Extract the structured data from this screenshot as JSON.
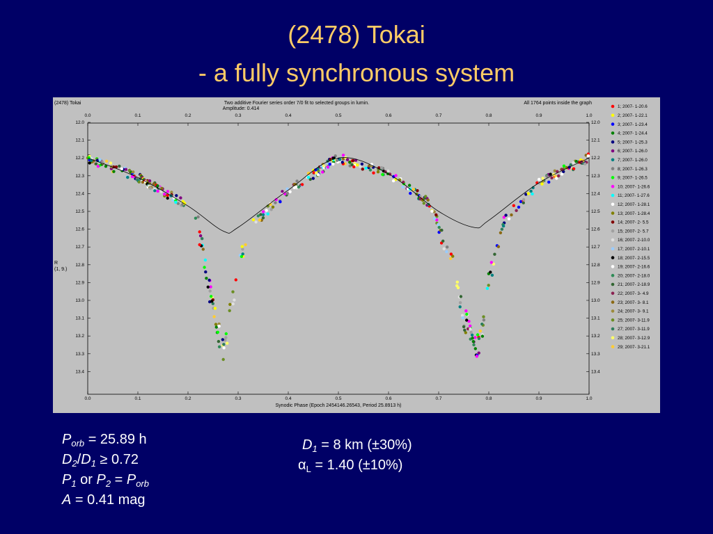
{
  "slide": {
    "title_line1": "(2478) Tokai",
    "title_line2": "- a fully synchronous system"
  },
  "plot": {
    "header_left": "(2478) Tokai",
    "header_center_1": "Two additive Fourier series order 7/0 fit to selected groups in lumin.",
    "header_center_2": "Amplitude: 0.414",
    "header_right": "All 1764 points inside the graph",
    "ylabel_1": "R",
    "ylabel_2": "(1, 9.)",
    "xlabel": "Synodic Phase (Epoch 2454146.26543, Period 25.8913 h)"
  },
  "chart_data": {
    "type": "scatter",
    "x_ticks": [
      "0.0",
      "0.1",
      "0.2",
      "0.3",
      "0.4",
      "0.5",
      "0.6",
      "0.7",
      "0.8",
      "0.9",
      "1.0"
    ],
    "y_ticks": [
      "12.0",
      "12.1",
      "12.2",
      "12.3",
      "12.4",
      "12.5",
      "12.6",
      "12.7",
      "12.8",
      "12.9",
      "13.0",
      "13.1",
      "13.2",
      "13.3",
      "13.4"
    ],
    "xlim": [
      0.0,
      1.0
    ],
    "ylim": [
      12.0,
      13.4
    ],
    "y_inverted": true,
    "legend_position": "right",
    "fit_curve": [
      [
        0.0,
        12.2
      ],
      [
        0.1,
        12.31
      ],
      [
        0.2,
        12.47
      ],
      [
        0.27,
        12.61
      ],
      [
        0.3,
        12.59
      ],
      [
        0.4,
        12.38
      ],
      [
        0.5,
        12.2
      ],
      [
        0.6,
        12.29
      ],
      [
        0.7,
        12.5
      ],
      [
        0.77,
        12.59
      ],
      [
        0.8,
        12.55
      ],
      [
        0.9,
        12.34
      ],
      [
        1.0,
        12.2
      ]
    ],
    "eclipse_profile": [
      [
        0.0,
        12.2
      ],
      [
        0.1,
        12.31
      ],
      [
        0.2,
        12.47
      ],
      [
        0.22,
        12.58
      ],
      [
        0.25,
        13.05
      ],
      [
        0.27,
        13.3
      ],
      [
        0.29,
        13.0
      ],
      [
        0.32,
        12.6
      ],
      [
        0.4,
        12.38
      ],
      [
        0.5,
        12.2
      ],
      [
        0.6,
        12.29
      ],
      [
        0.68,
        12.45
      ],
      [
        0.72,
        12.7
      ],
      [
        0.75,
        13.1
      ],
      [
        0.78,
        13.27
      ],
      [
        0.8,
        12.9
      ],
      [
        0.83,
        12.55
      ],
      [
        0.9,
        12.34
      ],
      [
        1.0,
        12.2
      ]
    ],
    "series": [
      {
        "name": "1; 2007- 1-20.6",
        "color": "#ff0000"
      },
      {
        "name": "2; 2007- 1-22.1",
        "color": "#ffff00"
      },
      {
        "name": "3; 2007- 1-23.4",
        "color": "#0000ff"
      },
      {
        "name": "4; 2007- 1-24.4",
        "color": "#008000"
      },
      {
        "name": "5; 2007- 1-25.3",
        "color": "#000080"
      },
      {
        "name": "6; 2007- 1-26.0",
        "color": "#800080"
      },
      {
        "name": "7; 2007- 1-26.0",
        "color": "#008080"
      },
      {
        "name": "8; 2007- 1-26.3",
        "color": "#808080"
      },
      {
        "name": "9; 2007- 1-26.5",
        "color": "#00ff00"
      },
      {
        "name": "10; 2007- 1-26.6",
        "color": "#ff00ff"
      },
      {
        "name": "11; 2007- 1-27.6",
        "color": "#00ffff"
      },
      {
        "name": "12; 2007- 1-28.1",
        "color": "#ffffff"
      },
      {
        "name": "13; 2007- 1-28.4",
        "color": "#808000"
      },
      {
        "name": "14; 2007- 2- 5.5",
        "color": "#800000"
      },
      {
        "name": "15; 2007- 2- 5.7",
        "color": "#a0a0a0"
      },
      {
        "name": "16; 2007- 2-10.0",
        "color": "#e0e0e0"
      },
      {
        "name": "17; 2007- 2-10.1",
        "color": "#99ccff"
      },
      {
        "name": "18; 2007- 2-15.5",
        "color": "#000000"
      },
      {
        "name": "19; 2007- 2-16.6",
        "color": "#ffffff"
      },
      {
        "name": "20; 2007- 2-18.0",
        "color": "#2e8b57"
      },
      {
        "name": "21; 2007- 2-18.9",
        "color": "#336633"
      },
      {
        "name": "22; 2007- 3- 4.9",
        "color": "#8b2252"
      },
      {
        "name": "23; 2007- 3- 8.1",
        "color": "#8b6914"
      },
      {
        "name": "24; 2007- 3- 9.1",
        "color": "#9c8b3c"
      },
      {
        "name": "25; 2007- 3-11.9",
        "color": "#6b8e23"
      },
      {
        "name": "27; 2007- 3-11.9",
        "color": "#2e7d5b"
      },
      {
        "name": "28; 2007- 3-12.9",
        "color": "#ffff66"
      },
      {
        "name": "29; 2007- 3-21.1",
        "color": "#ffcc33"
      }
    ]
  },
  "parameters_left": [
    {
      "sym": "P",
      "sub": "orb",
      "rest": " = 25.89 h"
    },
    {
      "sym": "D",
      "sub": "2",
      "rest2_sym": "D",
      "rest2_sub": "1",
      "rest": " ≥ 0.72"
    },
    {
      "text_p1": "P",
      "text_s1": "1",
      "text_or": " or ",
      "text_p2": "P",
      "text_s2": "2",
      "text_eq": " = ",
      "text_p3": "P",
      "text_s3": "orb"
    },
    {
      "sym": "A",
      "rest": " = 0.41 mag"
    }
  ],
  "parameters_right": {
    "d1_sym": "D",
    "d1_sub": "1",
    "d1_rest": " = 8 km (±30%)",
    "alpha_sym": "α",
    "alpha_sub": "L",
    "alpha_rest": " = 1.40 (±10%)"
  }
}
